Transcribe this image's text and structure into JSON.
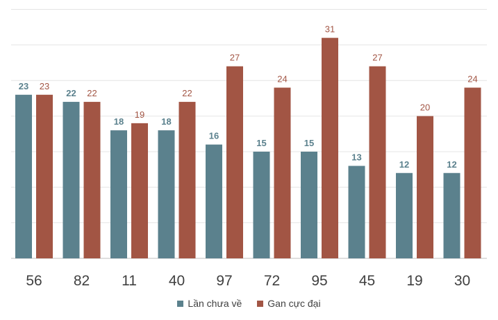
{
  "chart_data": {
    "type": "bar",
    "title": "",
    "xlabel": "",
    "ylabel": "",
    "ylim": [
      0,
      35
    ],
    "gridlines": true,
    "categories": [
      "56",
      "82",
      "11",
      "40",
      "97",
      "72",
      "95",
      "45",
      "19",
      "30"
    ],
    "series": [
      {
        "name": "Lần chưa về",
        "color": "#5b818d",
        "values": [
          23,
          22,
          18,
          18,
          16,
          15,
          15,
          13,
          12,
          12
        ]
      },
      {
        "name": "Gan cực đại",
        "color": "#a25544",
        "values": [
          23,
          22,
          19,
          22,
          27,
          24,
          31,
          27,
          20,
          24
        ]
      }
    ],
    "legend_position": "bottom"
  }
}
